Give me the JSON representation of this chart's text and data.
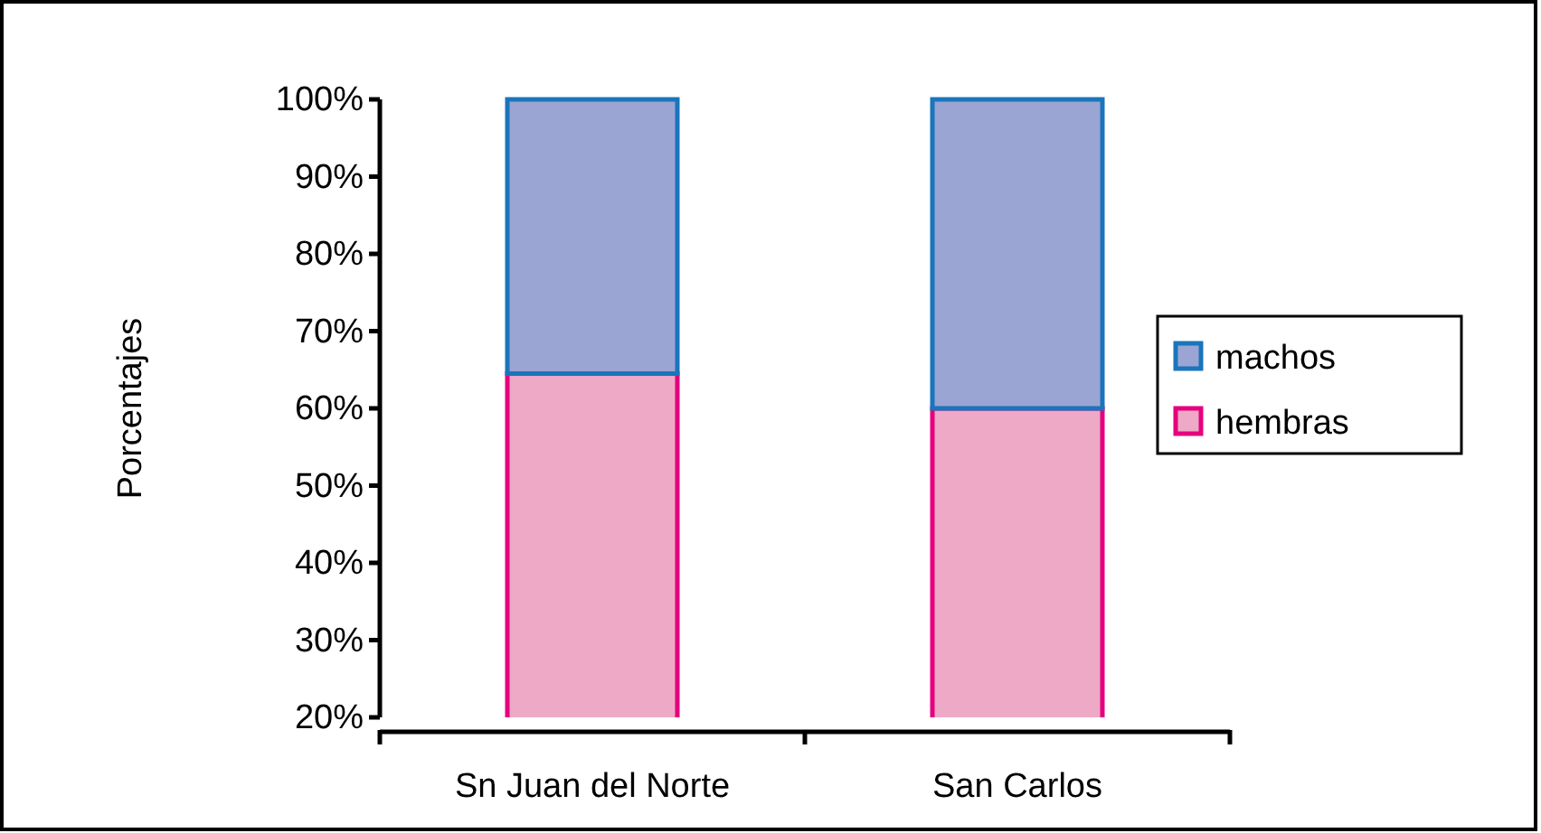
{
  "chart_data": {
    "type": "bar",
    "stacked": true,
    "ylabel": "Porcentajes",
    "categories": [
      "Sn Juan del Norte",
      "San Carlos"
    ],
    "series": [
      {
        "name": "hembras",
        "color": "#eea9c6",
        "values": [
          64.5,
          60
        ]
      },
      {
        "name": "machos",
        "color": "#9ba5d3",
        "values": [
          35.5,
          40
        ]
      }
    ],
    "ylim": [
      20,
      100
    ],
    "yticks": [
      {
        "value": 20,
        "label": "20%"
      },
      {
        "value": 30,
        "label": "30%"
      },
      {
        "value": 40,
        "label": "40%"
      },
      {
        "value": 50,
        "label": "50%"
      },
      {
        "value": 60,
        "label": "60%"
      },
      {
        "value": 70,
        "label": "70%"
      },
      {
        "value": 80,
        "label": "80%"
      },
      {
        "value": 90,
        "label": "90%"
      },
      {
        "value": 100,
        "label": "100%"
      }
    ],
    "legend": "right",
    "grid": false
  }
}
